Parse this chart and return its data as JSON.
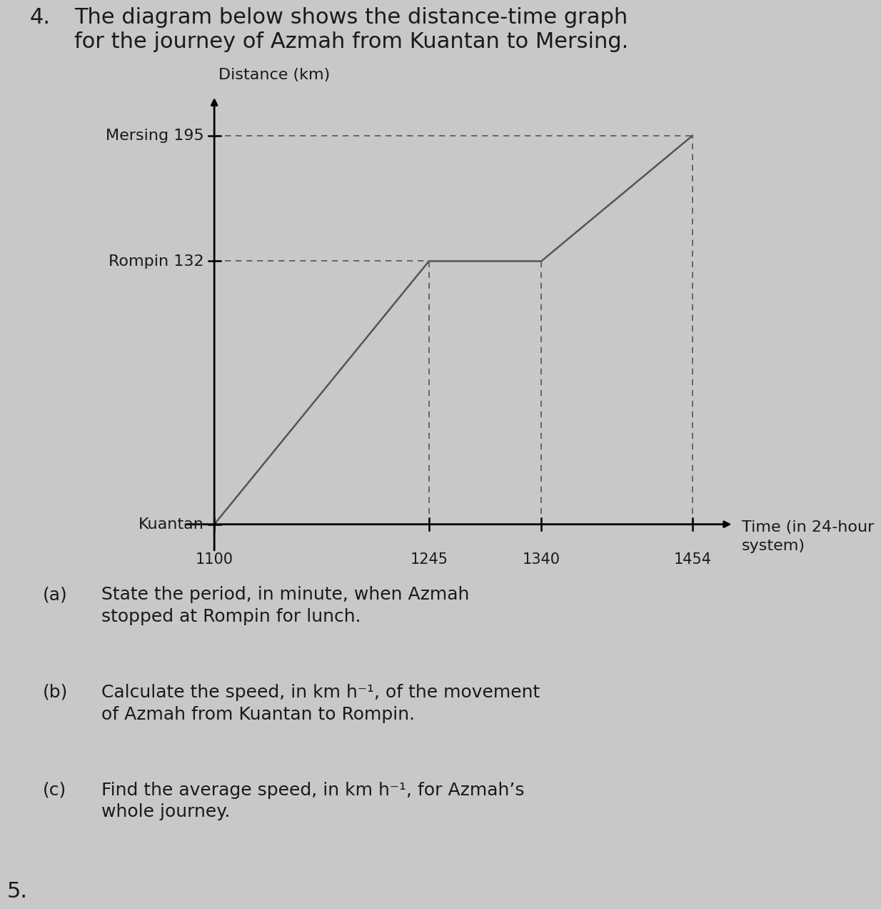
{
  "background_color": "#c8c8c8",
  "line_color": "#555555",
  "dashed_color": "#555555",
  "text_color": "#1a1a1a",
  "time_points_hhmm": [
    1100,
    1245,
    1340,
    1454
  ],
  "distance_points": [
    0,
    132,
    132,
    195
  ],
  "x_ticks": [
    1100,
    1245,
    1340,
    1454
  ],
  "y_ticks": [
    0,
    132,
    195
  ],
  "y_tick_labels": [
    "Kuantan",
    "Rompin 132",
    "Mersing 195"
  ],
  "xlabel": "Time (in 24-hour\nsystem)",
  "ylabel": "Distance (km)",
  "font_size_title": 22,
  "font_size_labels": 16,
  "font_size_ticks": 15,
  "font_size_questions": 18,
  "q_a_label": "(a)",
  "q_a_text": "State the period, in minute, when Azmah\nstopped at Rompin for lunch.",
  "q_b_label": "(b)",
  "q_b_text": "Calculate the speed, in km h⁻¹, of the movement\nof Azmah from Kuantan to Rompin.",
  "q_c_label": "(c)",
  "q_c_text": "Find the average speed, in km h⁻¹, for Azmah’s\nwhole journey."
}
